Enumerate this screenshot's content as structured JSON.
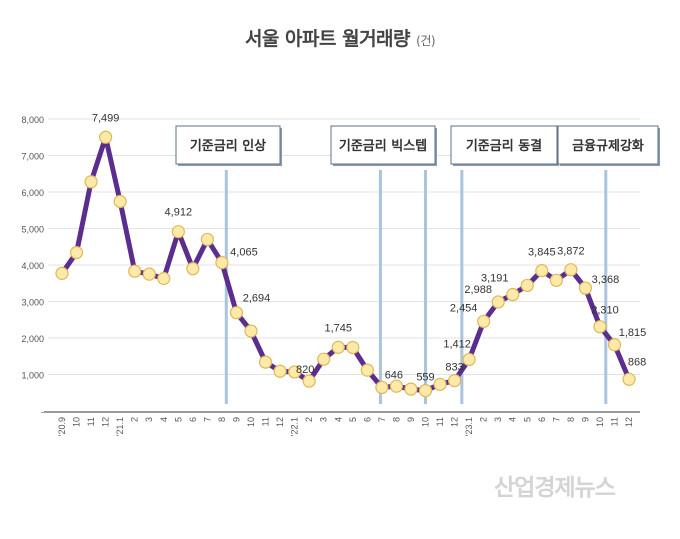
{
  "chart_data": {
    "type": "line",
    "title": "서울 아파트 월거래량",
    "unit": "(건)",
    "ylim": [
      0,
      8000
    ],
    "yticks": [
      0,
      1000,
      2000,
      3000,
      4000,
      5000,
      6000,
      7000,
      8000
    ],
    "ytick_labels": [
      "-",
      "1,000",
      "2,000",
      "3,000",
      "4,000",
      "5,000",
      "6,000",
      "7,000",
      "8,000"
    ],
    "grid": true,
    "categories": [
      "'20.9",
      "10",
      "11",
      "12",
      "'21.1",
      "2",
      "3",
      "4",
      "5",
      "6",
      "7",
      "8",
      "9",
      "10",
      "11",
      "12",
      "'22.1",
      "2",
      "3",
      "4",
      "5",
      "6",
      "7",
      "8",
      "9",
      "10",
      "11",
      "12",
      "'23.1",
      "2",
      "3",
      "4",
      "5",
      "6",
      "7",
      "8",
      "9",
      "10",
      "11",
      "12"
    ],
    "values": [
      3770,
      4340,
      6280,
      7499,
      5740,
      3830,
      3750,
      3630,
      4912,
      3900,
      4700,
      4065,
      2694,
      2190,
      1340,
      1090,
      1070,
      820,
      1420,
      1745,
      1740,
      1120,
      646,
      680,
      600,
      559,
      730,
      833,
      1412,
      2454,
      2988,
      3191,
      3440,
      3845,
      3580,
      3872,
      3368,
      2310,
      1815,
      868
    ],
    "data_labels": [
      {
        "index": 3,
        "text": "7,499"
      },
      {
        "index": 8,
        "text": "4,912"
      },
      {
        "index": 11,
        "text": "4,065"
      },
      {
        "index": 12,
        "text": "2,694"
      },
      {
        "index": 17,
        "text": "820"
      },
      {
        "index": 19,
        "text": "1,745"
      },
      {
        "index": 22,
        "text": "646"
      },
      {
        "index": 25,
        "text": "559"
      },
      {
        "index": 27,
        "text": "833"
      },
      {
        "index": 28,
        "text": "1,412"
      },
      {
        "index": 29,
        "text": "2,454"
      },
      {
        "index": 30,
        "text": "2,988"
      },
      {
        "index": 31,
        "text": "3,191"
      },
      {
        "index": 33,
        "text": "3,845"
      },
      {
        "index": 35,
        "text": "3,872"
      },
      {
        "index": 36,
        "text": "3,368"
      },
      {
        "index": 37,
        "text": "2,310"
      },
      {
        "index": 38,
        "text": "1,815"
      },
      {
        "index": 39,
        "text": "868"
      }
    ],
    "annotations": [
      {
        "text": "기준금리 인상",
        "lines_at": [
          11.3
        ]
      },
      {
        "text": "기준금리 빅스텝",
        "lines_at": [
          21.9,
          25
        ]
      },
      {
        "text": "기준금리 동결",
        "lines_at": [
          27.5
        ]
      },
      {
        "text": "금융규제강화",
        "lines_at": [
          37.4
        ]
      }
    ],
    "colors": {
      "line": "#5b2d8e",
      "marker_fill": "#fde9a8",
      "marker_stroke": "#e0b85a",
      "annotation_line": "#a9c4dc",
      "grid": "#e3e3e3"
    }
  },
  "watermark": "산업경제뉴스"
}
